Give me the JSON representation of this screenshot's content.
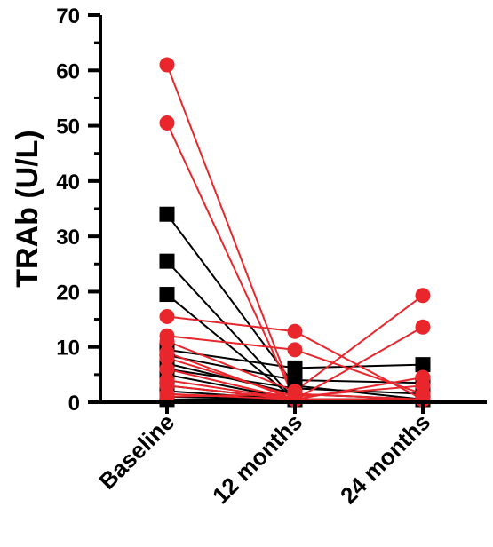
{
  "chart_data": {
    "type": "line",
    "ylabel": "TRAb (U/L)",
    "xlabel": "",
    "categories": [
      "Baseline",
      "12 months",
      "24 months"
    ],
    "ylim": [
      0,
      70
    ],
    "yticks": [
      "0",
      "10",
      "20",
      "30",
      "40",
      "50",
      "60",
      "70"
    ],
    "grid": false,
    "legend": "none",
    "colors": {
      "red": "#e8262c",
      "black": "#000000"
    },
    "red_series": [
      {
        "values": [
          61,
          0.5,
          0.5
        ]
      },
      {
        "values": [
          50.5,
          0.5,
          0.5
        ]
      },
      {
        "values": [
          15.5,
          12.8,
          0.5
        ]
      },
      {
        "values": [
          12,
          9.5,
          1.5
        ]
      },
      {
        "values": [
          11,
          2,
          19.3
        ]
      },
      {
        "values": [
          9,
          0.5,
          13.6
        ]
      },
      {
        "values": [
          8,
          1,
          3
        ]
      },
      {
        "values": [
          6,
          0.5,
          0.5
        ]
      },
      {
        "values": [
          4,
          0.5,
          0.5
        ]
      },
      {
        "values": [
          3,
          0.5,
          4.5
        ]
      },
      {
        "values": [
          1.5,
          0.5,
          0.5
        ]
      },
      {
        "values": [
          1,
          1.5,
          0.5
        ]
      }
    ],
    "black_series": [
      {
        "values": [
          34,
          3,
          0.5
        ]
      },
      {
        "values": [
          25.5,
          0.5,
          0.5
        ]
      },
      {
        "values": [
          19.5,
          0.5,
          0.5
        ]
      },
      {
        "values": [
          9.5,
          6.2,
          6.8
        ]
      },
      {
        "values": [
          8.5,
          4,
          3.5
        ]
      },
      {
        "values": [
          7,
          1.5,
          0.5
        ]
      },
      {
        "values": [
          6,
          2.5,
          1.5
        ]
      },
      {
        "values": [
          5,
          0.5,
          0.5
        ]
      },
      {
        "values": [
          3,
          0.5,
          0.5
        ]
      },
      {
        "values": [
          2,
          0.5,
          0.5
        ]
      },
      {
        "values": [
          1,
          0.5,
          0.5
        ]
      },
      {
        "values": [
          0.5,
          0.5,
          0.5
        ]
      }
    ]
  }
}
